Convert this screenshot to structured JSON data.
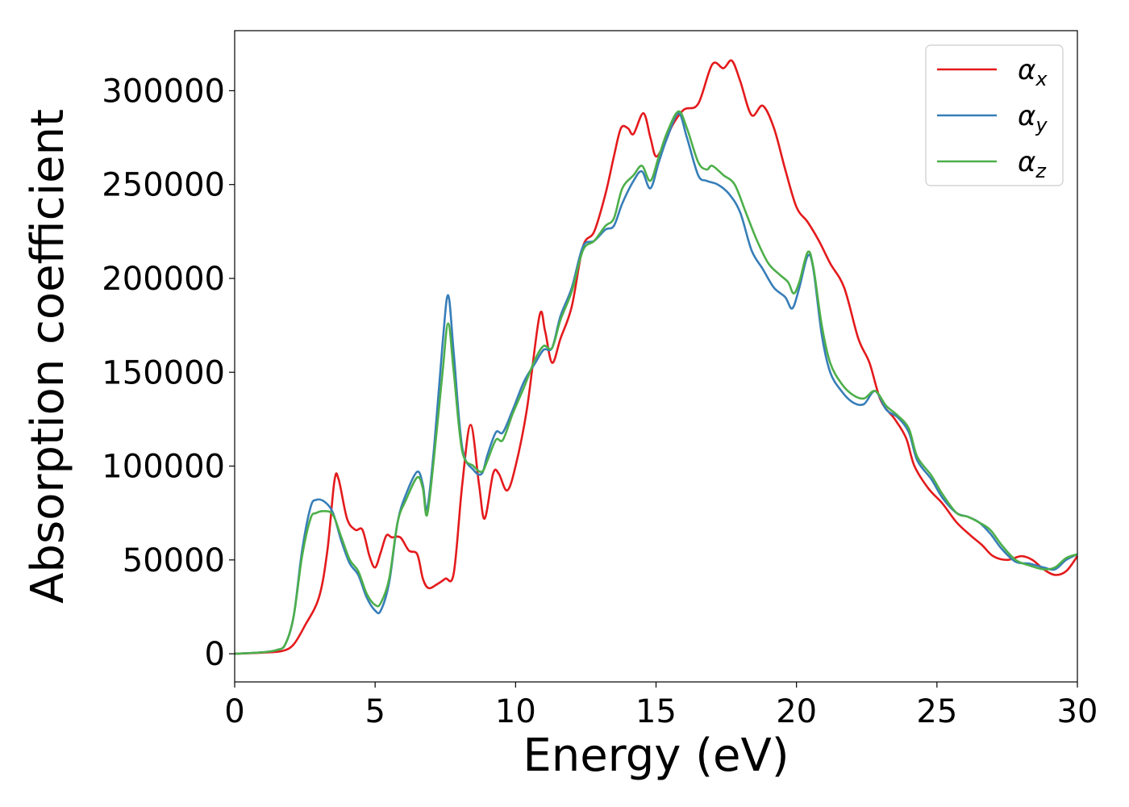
{
  "chart_data": {
    "type": "line",
    "title": "",
    "xlabel": "Energy (eV)",
    "ylabel": "Absorption coefficient",
    "xlim": [
      0,
      30
    ],
    "ylim": [
      -15000,
      332000
    ],
    "xticks": [
      0,
      5,
      10,
      15,
      20,
      25,
      30
    ],
    "yticks": [
      0,
      50000,
      100000,
      150000,
      200000,
      250000,
      300000
    ],
    "grid": false,
    "legend_position": "top-right",
    "series": [
      {
        "name": "αx",
        "label_main": "α",
        "label_sub": "x",
        "color": "#e41a1c",
        "points": [
          [
            0,
            0
          ],
          [
            1,
            600
          ],
          [
            1.7,
            1500
          ],
          [
            2.1,
            5000
          ],
          [
            2.5,
            15000
          ],
          [
            3.0,
            30000
          ],
          [
            3.3,
            55000
          ],
          [
            3.55,
            92000
          ],
          [
            3.7,
            93000
          ],
          [
            4.0,
            72000
          ],
          [
            4.3,
            66000
          ],
          [
            4.55,
            66000
          ],
          [
            4.8,
            52000
          ],
          [
            5.0,
            46000
          ],
          [
            5.2,
            54000
          ],
          [
            5.4,
            63000
          ],
          [
            5.6,
            62000
          ],
          [
            5.9,
            62000
          ],
          [
            6.2,
            55000
          ],
          [
            6.5,
            53000
          ],
          [
            6.7,
            40000
          ],
          [
            6.9,
            35000
          ],
          [
            7.2,
            37000
          ],
          [
            7.5,
            40000
          ],
          [
            7.8,
            43000
          ],
          [
            8.1,
            90000
          ],
          [
            8.4,
            122000
          ],
          [
            8.7,
            90000
          ],
          [
            8.9,
            72000
          ],
          [
            9.2,
            96000
          ],
          [
            9.4,
            96000
          ],
          [
            9.7,
            87000
          ],
          [
            10.0,
            100000
          ],
          [
            10.4,
            130000
          ],
          [
            10.85,
            180000
          ],
          [
            11.05,
            172000
          ],
          [
            11.3,
            155000
          ],
          [
            11.6,
            168000
          ],
          [
            12.0,
            185000
          ],
          [
            12.4,
            217000
          ],
          [
            12.8,
            225000
          ],
          [
            13.2,
            245000
          ],
          [
            13.5,
            265000
          ],
          [
            13.75,
            280000
          ],
          [
            14.0,
            280000
          ],
          [
            14.2,
            277000
          ],
          [
            14.55,
            288000
          ],
          [
            14.8,
            275000
          ],
          [
            15.0,
            265000
          ],
          [
            15.3,
            272000
          ],
          [
            15.6,
            282000
          ],
          [
            16.0,
            290000
          ],
          [
            16.5,
            293000
          ],
          [
            17.0,
            314000
          ],
          [
            17.4,
            312000
          ],
          [
            17.7,
            316000
          ],
          [
            18.0,
            305000
          ],
          [
            18.4,
            287000
          ],
          [
            18.8,
            292000
          ],
          [
            19.2,
            280000
          ],
          [
            19.6,
            258000
          ],
          [
            20.0,
            238000
          ],
          [
            20.4,
            230000
          ],
          [
            20.8,
            220000
          ],
          [
            21.2,
            208000
          ],
          [
            21.7,
            195000
          ],
          [
            22.2,
            168000
          ],
          [
            22.6,
            155000
          ],
          [
            23.0,
            135000
          ],
          [
            23.5,
            125000
          ],
          [
            23.9,
            115000
          ],
          [
            24.2,
            100000
          ],
          [
            24.7,
            88000
          ],
          [
            25.2,
            80000
          ],
          [
            25.7,
            70000
          ],
          [
            26.2,
            63000
          ],
          [
            26.6,
            58000
          ],
          [
            27.0,
            52000
          ],
          [
            27.5,
            50000
          ],
          [
            28.0,
            52000
          ],
          [
            28.4,
            50000
          ],
          [
            28.8,
            45000
          ],
          [
            29.2,
            42000
          ],
          [
            29.6,
            44000
          ],
          [
            30,
            52000
          ]
        ]
      },
      {
        "name": "αy",
        "label_main": "α",
        "label_sub": "y",
        "color": "#377eb8",
        "points": [
          [
            0,
            0
          ],
          [
            1,
            800
          ],
          [
            1.5,
            2000
          ],
          [
            1.8,
            5000
          ],
          [
            2.1,
            20000
          ],
          [
            2.4,
            55000
          ],
          [
            2.7,
            78000
          ],
          [
            2.9,
            82000
          ],
          [
            3.2,
            81000
          ],
          [
            3.5,
            75000
          ],
          [
            3.8,
            60000
          ],
          [
            4.1,
            48000
          ],
          [
            4.4,
            42000
          ],
          [
            4.7,
            30000
          ],
          [
            5.0,
            23000
          ],
          [
            5.2,
            23000
          ],
          [
            5.5,
            38000
          ],
          [
            5.8,
            70000
          ],
          [
            6.1,
            85000
          ],
          [
            6.5,
            97000
          ],
          [
            6.7,
            90000
          ],
          [
            6.85,
            77000
          ],
          [
            7.1,
            110000
          ],
          [
            7.4,
            165000
          ],
          [
            7.6,
            191000
          ],
          [
            7.8,
            160000
          ],
          [
            8.1,
            110000
          ],
          [
            8.5,
            98000
          ],
          [
            8.8,
            96000
          ],
          [
            9.0,
            106000
          ],
          [
            9.3,
            118000
          ],
          [
            9.55,
            118000
          ],
          [
            9.9,
            130000
          ],
          [
            10.3,
            145000
          ],
          [
            10.7,
            155000
          ],
          [
            11.0,
            162000
          ],
          [
            11.3,
            163000
          ],
          [
            11.6,
            180000
          ],
          [
            12.0,
            195000
          ],
          [
            12.4,
            217000
          ],
          [
            12.8,
            220000
          ],
          [
            13.2,
            226000
          ],
          [
            13.5,
            228000
          ],
          [
            13.8,
            240000
          ],
          [
            14.2,
            252000
          ],
          [
            14.5,
            257000
          ],
          [
            14.8,
            248000
          ],
          [
            15.1,
            262000
          ],
          [
            15.4,
            275000
          ],
          [
            15.8,
            288000
          ],
          [
            16.1,
            275000
          ],
          [
            16.5,
            255000
          ],
          [
            16.8,
            252000
          ],
          [
            17.2,
            250000
          ],
          [
            17.6,
            245000
          ],
          [
            18.0,
            235000
          ],
          [
            18.4,
            215000
          ],
          [
            18.8,
            205000
          ],
          [
            19.2,
            195000
          ],
          [
            19.6,
            190000
          ],
          [
            19.85,
            184000
          ],
          [
            20.1,
            195000
          ],
          [
            20.4,
            212000
          ],
          [
            20.6,
            205000
          ],
          [
            20.9,
            170000
          ],
          [
            21.2,
            150000
          ],
          [
            21.6,
            140000
          ],
          [
            22.0,
            134000
          ],
          [
            22.4,
            133000
          ],
          [
            22.8,
            140000
          ],
          [
            23.2,
            130000
          ],
          [
            23.6,
            126000
          ],
          [
            24.0,
            118000
          ],
          [
            24.3,
            103000
          ],
          [
            24.8,
            93000
          ],
          [
            25.2,
            83000
          ],
          [
            25.7,
            75000
          ],
          [
            26.1,
            73000
          ],
          [
            26.5,
            70000
          ],
          [
            26.9,
            64000
          ],
          [
            27.3,
            56000
          ],
          [
            27.8,
            49000
          ],
          [
            28.3,
            48000
          ],
          [
            28.8,
            46000
          ],
          [
            29.2,
            45000
          ],
          [
            29.6,
            50000
          ],
          [
            30,
            53000
          ]
        ]
      },
      {
        "name": "αz",
        "label_main": "α",
        "label_sub": "z",
        "color": "#4daf4a",
        "points": [
          [
            0,
            0
          ],
          [
            1,
            800
          ],
          [
            1.5,
            2000
          ],
          [
            1.8,
            5000
          ],
          [
            2.1,
            20000
          ],
          [
            2.4,
            52000
          ],
          [
            2.7,
            72000
          ],
          [
            2.9,
            75000
          ],
          [
            3.2,
            76000
          ],
          [
            3.5,
            74000
          ],
          [
            3.8,
            62000
          ],
          [
            4.1,
            50000
          ],
          [
            4.4,
            44000
          ],
          [
            4.7,
            32000
          ],
          [
            5.0,
            26000
          ],
          [
            5.2,
            27000
          ],
          [
            5.5,
            40000
          ],
          [
            5.8,
            70000
          ],
          [
            6.1,
            82000
          ],
          [
            6.5,
            94000
          ],
          [
            6.7,
            88000
          ],
          [
            6.85,
            74000
          ],
          [
            7.1,
            105000
          ],
          [
            7.4,
            150000
          ],
          [
            7.6,
            176000
          ],
          [
            7.8,
            150000
          ],
          [
            8.1,
            108000
          ],
          [
            8.5,
            100000
          ],
          [
            8.8,
            97000
          ],
          [
            9.0,
            103000
          ],
          [
            9.3,
            114000
          ],
          [
            9.55,
            114000
          ],
          [
            9.9,
            128000
          ],
          [
            10.3,
            142000
          ],
          [
            10.7,
            157000
          ],
          [
            11.0,
            164000
          ],
          [
            11.3,
            163000
          ],
          [
            11.6,
            178000
          ],
          [
            12.0,
            193000
          ],
          [
            12.4,
            215000
          ],
          [
            12.8,
            220000
          ],
          [
            13.2,
            228000
          ],
          [
            13.5,
            232000
          ],
          [
            13.8,
            248000
          ],
          [
            14.2,
            255000
          ],
          [
            14.5,
            260000
          ],
          [
            14.8,
            252000
          ],
          [
            15.1,
            265000
          ],
          [
            15.4,
            278000
          ],
          [
            15.8,
            289000
          ],
          [
            16.1,
            280000
          ],
          [
            16.5,
            262000
          ],
          [
            16.8,
            258000
          ],
          [
            17.0,
            260000
          ],
          [
            17.4,
            255000
          ],
          [
            17.8,
            250000
          ],
          [
            18.2,
            235000
          ],
          [
            18.6,
            220000
          ],
          [
            19.0,
            208000
          ],
          [
            19.4,
            202000
          ],
          [
            19.7,
            198000
          ],
          [
            19.9,
            192000
          ],
          [
            20.1,
            198000
          ],
          [
            20.4,
            214000
          ],
          [
            20.6,
            206000
          ],
          [
            20.9,
            175000
          ],
          [
            21.2,
            155000
          ],
          [
            21.6,
            144000
          ],
          [
            22.0,
            138000
          ],
          [
            22.4,
            136000
          ],
          [
            22.8,
            140000
          ],
          [
            23.2,
            132000
          ],
          [
            23.6,
            127000
          ],
          [
            24.0,
            120000
          ],
          [
            24.3,
            105000
          ],
          [
            24.8,
            95000
          ],
          [
            25.2,
            85000
          ],
          [
            25.7,
            75000
          ],
          [
            26.1,
            73000
          ],
          [
            26.5,
            70000
          ],
          [
            26.9,
            66000
          ],
          [
            27.3,
            58000
          ],
          [
            27.8,
            50000
          ],
          [
            28.3,
            47000
          ],
          [
            28.8,
            45000
          ],
          [
            29.2,
            46000
          ],
          [
            29.6,
            51000
          ],
          [
            30,
            53000
          ]
        ]
      }
    ]
  }
}
